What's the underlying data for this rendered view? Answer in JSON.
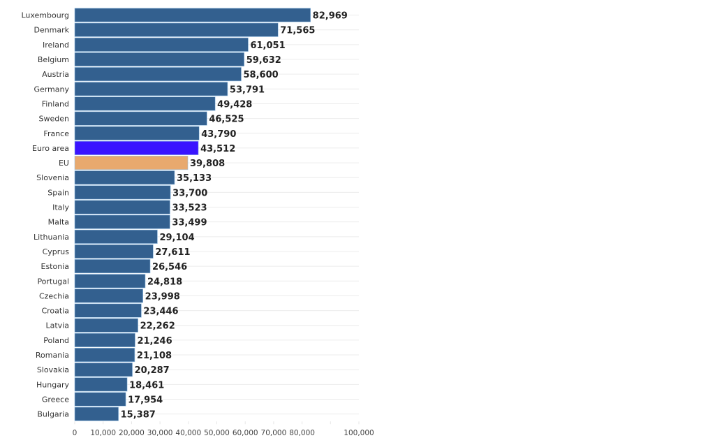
{
  "chart_data": {
    "type": "bar",
    "orientation": "horizontal",
    "title": "",
    "xlabel": "",
    "ylabel": "",
    "xlim": [
      0,
      100000
    ],
    "x_ticks": [
      0,
      10000,
      20000,
      30000,
      40000,
      50000,
      60000,
      70000,
      80000,
      90000,
      100000
    ],
    "x_tick_labels": [
      "0",
      "10,000",
      "20,000",
      "30,000",
      "40,000",
      "50,000",
      "60,000",
      "70,000",
      "80,000",
      "",
      "100,000"
    ],
    "grid": true,
    "categories": [
      "Luxembourg",
      "Denmark",
      "Ireland",
      "Belgium",
      "Austria",
      "Germany",
      "Finland",
      "Sweden",
      "France",
      "Euro area",
      "EU",
      "Slovenia",
      "Spain",
      "Italy",
      "Malta",
      "Lithuania",
      "Cyprus",
      "Estonia",
      "Portugal",
      "Czechia",
      "Croatia",
      "Latvia",
      "Poland",
      "Romania",
      "Slovakia",
      "Hungary",
      "Greece",
      "Bulgaria"
    ],
    "values": [
      82969,
      71565,
      61051,
      59632,
      58600,
      53791,
      49428,
      46525,
      43790,
      43512,
      39808,
      35133,
      33700,
      33523,
      33499,
      29104,
      27611,
      26546,
      24818,
      23998,
      23446,
      22262,
      21246,
      21108,
      20287,
      18461,
      17954,
      15387
    ],
    "value_labels": [
      "82,969",
      "71,565",
      "61,051",
      "59,632",
      "58,600",
      "53,791",
      "49,428",
      "46,525",
      "43,790",
      "43,512",
      "39,808",
      "35,133",
      "33,700",
      "33,523",
      "33,499",
      "29,104",
      "27,611",
      "26,546",
      "24,818",
      "23,998",
      "23,446",
      "22,262",
      "21,246",
      "21,108",
      "20,287",
      "18,461",
      "17,954",
      "15,387"
    ],
    "colors": {
      "default": "#33608f",
      "Euro area": "#3a14ff",
      "EU": "#e8a96e"
    }
  }
}
